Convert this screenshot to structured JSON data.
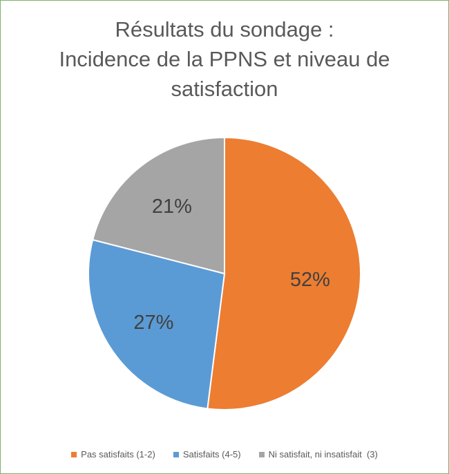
{
  "chart_data": {
    "type": "pie",
    "title_lines": [
      "Résultats du sondage :",
      "Incidence de la PPNS et niveau de",
      "satisfaction"
    ],
    "categories": [
      "Pas satisfaits (1-2)",
      "Satisfaits (4-5)",
      "Ni satisfait, ni insatisfait  (3)"
    ],
    "values": [
      52,
      27,
      21
    ],
    "labels": [
      "52%",
      "27%",
      "21%"
    ],
    "colors": [
      "#ed7d31",
      "#5b9bd5",
      "#a5a5a5"
    ],
    "legend_position": "bottom"
  }
}
